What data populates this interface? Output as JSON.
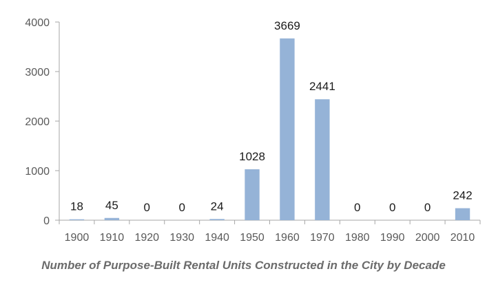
{
  "chart_data": {
    "type": "bar",
    "title": "",
    "caption": "Number of Purpose-Built Rental Units Constructed in the City by Decade",
    "xlabel": "",
    "ylabel": "",
    "categories": [
      "1900",
      "1910",
      "1920",
      "1930",
      "1940",
      "1950",
      "1960",
      "1970",
      "1980",
      "1990",
      "2000",
      "2010"
    ],
    "values": [
      18,
      45,
      0,
      0,
      24,
      1028,
      3669,
      2441,
      0,
      0,
      0,
      242
    ],
    "data_labels": [
      "18",
      "45",
      "0",
      "0",
      "24",
      "1028",
      "3669",
      "2441",
      "0",
      "0",
      "0",
      "242"
    ],
    "y_ticks": [
      0,
      1000,
      2000,
      3000,
      4000
    ],
    "ylim": [
      0,
      4000
    ],
    "grid": false,
    "legend": "none",
    "colors": {
      "bar": "#95b3d7",
      "axis": "#a6a6a6"
    }
  }
}
